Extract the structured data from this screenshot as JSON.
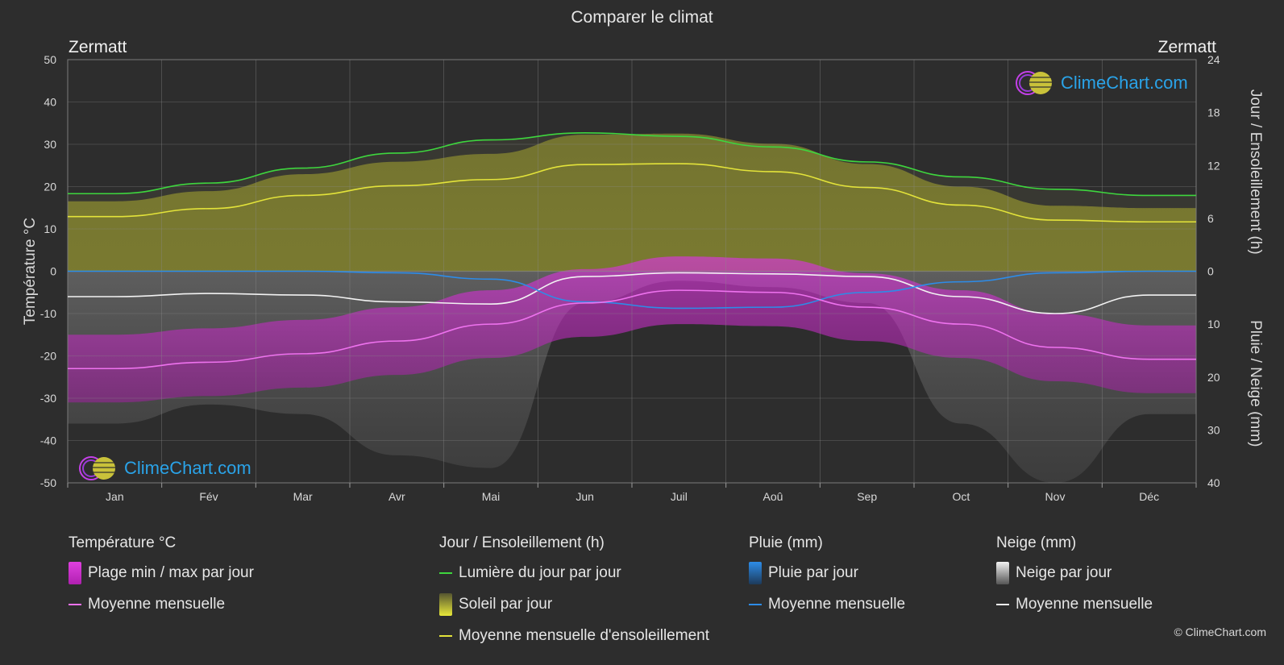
{
  "title": "Comparer le climat",
  "location_left": "Zermatt",
  "location_right": "Zermatt",
  "brand": "ClimeChart.com",
  "copyright": "© ClimeChart.com",
  "colors": {
    "background": "#2d2d2d",
    "daylight": "#3ed63e",
    "sunshine_avg": "#e3e33a",
    "sunshine_fill": "#a5a52e",
    "temp_avg": "#ee72ee",
    "temp_range": "#cc2ecc",
    "rain": "#2d8ce8",
    "snow_avg": "#f2f2f2",
    "snow_fill": "#a2a2a2",
    "brand": "#2aa3e8"
  },
  "legend": {
    "temperature": {
      "header": "Température °C",
      "range_label": "Plage min / max par jour",
      "avg_label": "Moyenne mensuelle"
    },
    "sunshine": {
      "header": "Jour / Ensoleillement (h)",
      "daylight_label": "Lumière du jour par jour",
      "sun_label": "Soleil par jour",
      "avg_label": "Moyenne mensuelle d'ensoleillement"
    },
    "rain": {
      "header": "Pluie (mm)",
      "day_label": "Pluie par jour",
      "avg_label": "Moyenne mensuelle"
    },
    "snow": {
      "header": "Neige (mm)",
      "day_label": "Neige par jour",
      "avg_label": "Moyenne mensuelle"
    }
  },
  "chart_data": {
    "type": "line",
    "title": "Comparer le climat",
    "categories": [
      "Jan",
      "Fév",
      "Mar",
      "Avr",
      "Mai",
      "Jun",
      "Juil",
      "Aoû",
      "Sep",
      "Oct",
      "Nov",
      "Déc"
    ],
    "y_left": {
      "label": "Température °C",
      "range": [
        -50,
        50
      ],
      "ticks": [
        "50",
        "40",
        "30",
        "20",
        "10",
        "0",
        "-10",
        "-20",
        "-30",
        "-40",
        "-50"
      ]
    },
    "y_right_top": {
      "label": "Jour / Ensoleillement (h)",
      "range": [
        0,
        24
      ],
      "ticks": [
        "24",
        "18",
        "12",
        "6",
        "0"
      ]
    },
    "y_right_bottom": {
      "label": "Pluie / Neige (mm)",
      "range": [
        0,
        40
      ],
      "ticks": [
        "0",
        "10",
        "20",
        "30",
        "40"
      ]
    },
    "grid": true,
    "series": [
      {
        "name": "Lumière du jour par jour",
        "axis": "hours",
        "values": [
          8.8,
          10.0,
          11.7,
          13.4,
          14.9,
          15.7,
          15.3,
          14.1,
          12.4,
          10.7,
          9.3,
          8.6
        ]
      },
      {
        "name": "Moyenne mensuelle d'ensoleillement",
        "axis": "hours",
        "values": [
          6.2,
          7.1,
          8.6,
          9.7,
          10.4,
          12.1,
          12.2,
          11.3,
          9.5,
          7.5,
          5.8,
          5.6
        ]
      },
      {
        "name": "Moyenne mensuelle",
        "kind": "temperature",
        "axis": "temp",
        "values": [
          -23.0,
          -21.5,
          -19.5,
          -16.5,
          -12.5,
          -7.5,
          -4.5,
          -5.0,
          -8.5,
          -12.5,
          -18.0,
          -20.8
        ]
      },
      {
        "name": "Moyenne mensuelle",
        "kind": "rain",
        "axis": "precip",
        "values": [
          0.0,
          0.0,
          0.0,
          0.3,
          1.5,
          5.8,
          7.0,
          6.8,
          4.0,
          2.0,
          0.3,
          0.0
        ]
      },
      {
        "name": "Moyenne mensuelle",
        "kind": "snow",
        "axis": "precip",
        "values": [
          4.8,
          4.2,
          4.5,
          5.8,
          6.2,
          1.0,
          0.3,
          0.5,
          1.0,
          4.8,
          8.0,
          4.5
        ]
      }
    ]
  }
}
